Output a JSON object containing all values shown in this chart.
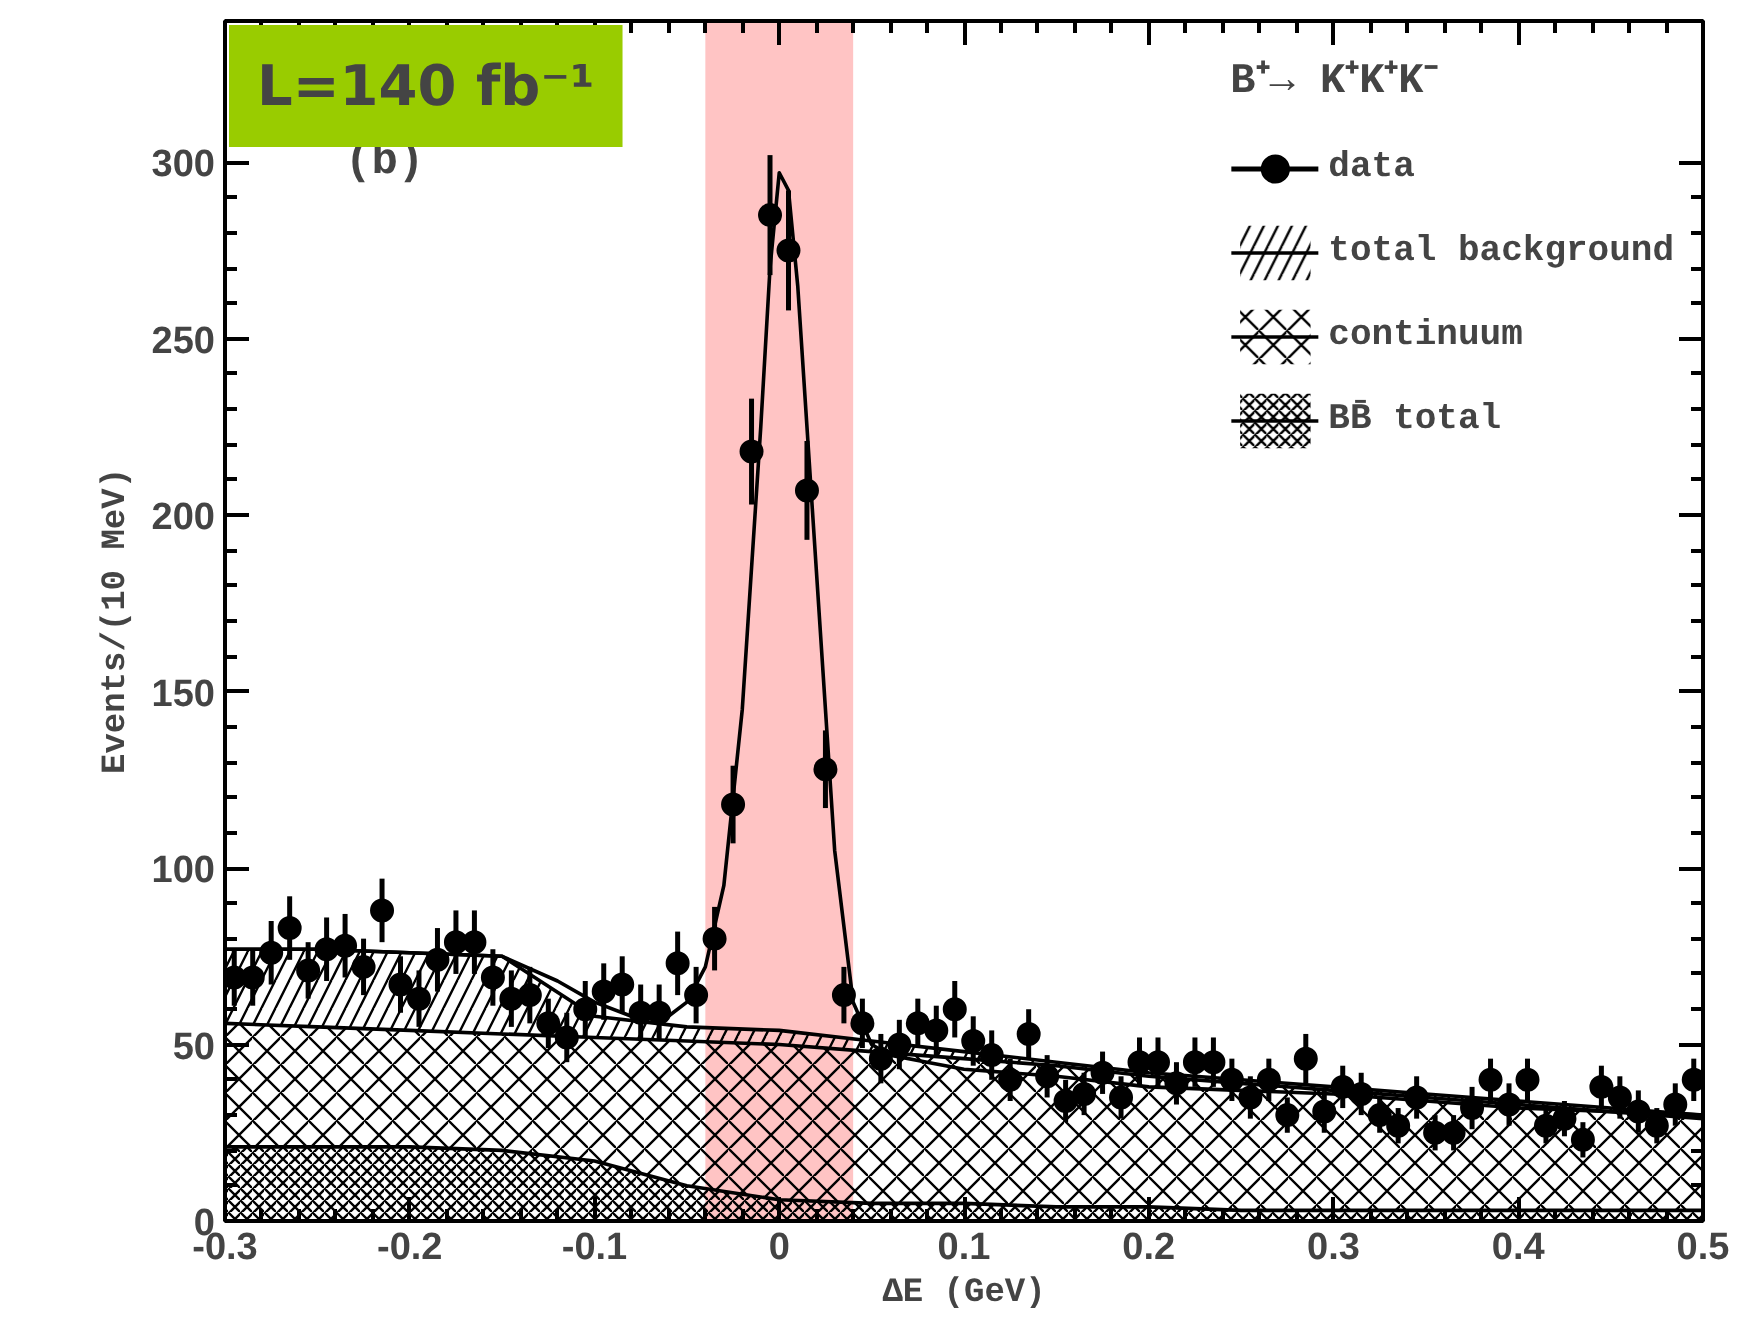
{
  "chart_data": {
    "type": "scatter",
    "xlabel": "ΔE (GeV)",
    "ylabel": "Events/(10 MeV)",
    "legend_title": "B⁺→ K⁺K⁺K⁻",
    "annotations": [
      "L=140 fb⁻¹",
      "(b)"
    ],
    "xlim": [
      -0.3,
      0.5
    ],
    "ylim": [
      0,
      340
    ],
    "xticks": [
      -0.3,
      -0.2,
      -0.1,
      0,
      0.1,
      0.2,
      0.3,
      0.4,
      0.5
    ],
    "yticks": [
      0,
      50,
      100,
      150,
      200,
      250,
      300
    ],
    "grid": false,
    "legend": "top right",
    "stacked": true,
    "bands": [
      {
        "axis": "x",
        "from": -0.04,
        "to": 0.04,
        "color": "#ffc4c4"
      }
    ],
    "series": [
      {
        "name": "data",
        "color": "#000000",
        "marker": "circle",
        "x": [
          -0.295,
          -0.285,
          -0.275,
          -0.265,
          -0.255,
          -0.245,
          -0.235,
          -0.225,
          -0.215,
          -0.205,
          -0.195,
          -0.185,
          -0.175,
          -0.165,
          -0.155,
          -0.145,
          -0.135,
          -0.125,
          -0.115,
          -0.105,
          -0.095,
          -0.085,
          -0.075,
          -0.065,
          -0.055,
          -0.045,
          -0.035,
          -0.025,
          -0.015,
          -0.005,
          0.005,
          0.015,
          0.025,
          0.035,
          0.045,
          0.055,
          0.065,
          0.075,
          0.085,
          0.095,
          0.105,
          0.115,
          0.125,
          0.135,
          0.145,
          0.155,
          0.165,
          0.175,
          0.185,
          0.195,
          0.205,
          0.215,
          0.225,
          0.235,
          0.245,
          0.255,
          0.265,
          0.275,
          0.285,
          0.295,
          0.305,
          0.315,
          0.325,
          0.335,
          0.345,
          0.355,
          0.365,
          0.375,
          0.385,
          0.395,
          0.405,
          0.415,
          0.425,
          0.435,
          0.445,
          0.455,
          0.465,
          0.475,
          0.485,
          0.495
        ],
        "values": [
          69,
          69,
          76,
          83,
          71,
          77,
          78,
          72,
          88,
          67,
          63,
          74,
          79,
          79,
          69,
          63,
          64,
          56,
          52,
          60,
          65,
          67,
          59,
          59,
          73,
          64,
          80,
          118,
          218,
          285,
          275,
          207,
          128,
          64,
          56,
          46,
          50,
          56,
          54,
          60,
          51,
          47,
          40,
          53,
          41,
          34,
          36,
          42,
          35,
          45,
          45,
          39,
          45,
          45,
          40,
          35,
          40,
          30,
          46,
          31,
          38,
          36,
          30,
          27,
          35,
          25,
          25,
          32,
          40,
          33,
          40,
          27,
          29,
          23,
          38,
          35,
          31,
          27,
          33,
          40
        ],
        "errors": [
          8,
          8,
          9,
          9,
          8,
          9,
          9,
          8,
          9,
          8,
          8,
          9,
          9,
          9,
          8,
          8,
          8,
          7,
          7,
          8,
          8,
          8,
          8,
          8,
          9,
          8,
          9,
          11,
          15,
          17,
          17,
          14,
          11,
          8,
          7,
          7,
          7,
          7,
          7,
          8,
          7,
          7,
          6,
          7,
          6,
          6,
          6,
          6,
          6,
          7,
          7,
          6,
          7,
          7,
          6,
          6,
          6,
          5,
          7,
          6,
          6,
          6,
          5,
          5,
          6,
          5,
          5,
          6,
          6,
          6,
          6,
          5,
          5,
          5,
          6,
          6,
          6,
          5,
          6,
          6
        ]
      },
      {
        "name": "BB̄ total",
        "type": "area",
        "color": "#000000",
        "x": [
          -0.3,
          -0.25,
          -0.2,
          -0.15,
          -0.1,
          -0.05,
          0,
          0.05,
          0.1,
          0.15,
          0.2,
          0.25,
          0.3,
          0.35,
          0.4,
          0.45,
          0.5
        ],
        "values": [
          21,
          21,
          21,
          20,
          17,
          10,
          6,
          5,
          5,
          4,
          4,
          3,
          3,
          3,
          3,
          3,
          3
        ]
      },
      {
        "name": "continuum",
        "type": "area",
        "color": "#000000",
        "x": [
          -0.3,
          -0.25,
          -0.2,
          -0.15,
          -0.1,
          -0.05,
          0,
          0.05,
          0.1,
          0.15,
          0.2,
          0.25,
          0.3,
          0.35,
          0.4,
          0.45,
          0.5
        ],
        "values": [
          35,
          34,
          33,
          33,
          35,
          41,
          44,
          43,
          41,
          40,
          37,
          36,
          34,
          32,
          30,
          28,
          26
        ]
      },
      {
        "name": "total background",
        "type": "area",
        "color": "#000000",
        "x": [
          -0.3,
          -0.25,
          -0.2,
          -0.15,
          -0.1,
          -0.05,
          0,
          0.05,
          0.1,
          0.15,
          0.2,
          0.25,
          0.3,
          0.35,
          0.4,
          0.45,
          0.5
        ],
        "values": [
          21,
          22,
          22,
          22,
          6,
          4,
          4,
          3,
          2,
          1,
          1,
          1,
          1,
          1,
          1,
          1,
          1
        ]
      },
      {
        "type": "line",
        "color": "#000000",
        "x": [
          -0.3,
          -0.25,
          -0.2,
          -0.15,
          -0.12,
          -0.1,
          -0.08,
          -0.06,
          -0.05,
          -0.04,
          -0.03,
          -0.02,
          -0.01,
          -0.005,
          0,
          0.005,
          0.01,
          0.02,
          0.03,
          0.04,
          0.05,
          0.06,
          0.08,
          0.1,
          0.15,
          0.2,
          0.3,
          0.4,
          0.5
        ],
        "values": [
          77,
          77,
          76,
          75,
          68,
          62,
          58,
          58,
          62,
          72,
          95,
          145,
          225,
          270,
          297,
          292,
          265,
          185,
          105,
          62,
          50,
          47,
          45,
          43,
          41,
          38,
          36,
          32,
          30
        ]
      }
    ]
  }
}
